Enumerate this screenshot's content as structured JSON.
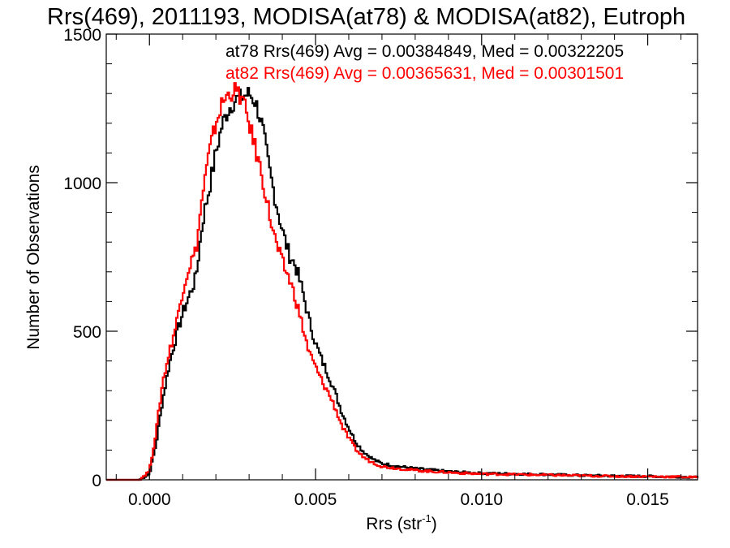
{
  "chart_data": {
    "type": "line",
    "title": "Rrs(469), 2011193, MODISA(at78) & MODISA(at82), Eutroph",
    "xlabel": "Rrs (str",
    "xlabel_sup": "-1",
    "xlabel_close": ")",
    "ylabel": "Number of Observations",
    "xlim": [
      -0.0013,
      0.0165
    ],
    "ylim": [
      0,
      1500
    ],
    "xticks": [
      0.0,
      0.005,
      0.01,
      0.015
    ],
    "xtick_labels": [
      "0.000",
      "0.005",
      "0.010",
      "0.015"
    ],
    "yticks": [
      0,
      500,
      1000,
      1500
    ],
    "ytick_labels": [
      "0",
      "500",
      "1000",
      "1500"
    ],
    "grid": false,
    "legend_position": "top-right",
    "annotations": [
      "at78 Rrs(469) Avg = 0.00384849, Med = 0.00322205",
      "at82 Rrs(469) Avg = 0.00365631, Med = 0.00301501"
    ],
    "series": [
      {
        "name": "at78",
        "color": "#000000",
        "x": [
          -0.0013,
          -0.0003,
          0.0,
          0.0002,
          0.0004,
          0.0006,
          0.0008,
          0.001,
          0.0012,
          0.0014,
          0.0016,
          0.0018,
          0.002,
          0.0022,
          0.0024,
          0.0026,
          0.0028,
          0.003,
          0.0032,
          0.0034,
          0.0036,
          0.0038,
          0.004,
          0.0042,
          0.0044,
          0.0046,
          0.0048,
          0.005,
          0.0052,
          0.0054,
          0.0056,
          0.0058,
          0.006,
          0.0062,
          0.0064,
          0.0066,
          0.0068,
          0.007,
          0.0075,
          0.008,
          0.0085,
          0.009,
          0.0095,
          0.01,
          0.011,
          0.012,
          0.013,
          0.014,
          0.015,
          0.016,
          0.0165
        ],
        "y": [
          0,
          0,
          20,
          120,
          270,
          390,
          480,
          560,
          620,
          680,
          870,
          980,
          1100,
          1200,
          1250,
          1280,
          1290,
          1300,
          1270,
          1190,
          1050,
          940,
          840,
          760,
          720,
          640,
          540,
          460,
          400,
          350,
          290,
          225,
          175,
          130,
          100,
          80,
          65,
          55,
          45,
          38,
          33,
          28,
          25,
          22,
          20,
          18,
          15,
          13,
          12,
          10,
          8
        ]
      },
      {
        "name": "at82",
        "color": "#ff0000",
        "x": [
          -0.0013,
          -0.0003,
          0.0,
          0.0002,
          0.0004,
          0.0006,
          0.0008,
          0.001,
          0.0012,
          0.0014,
          0.0016,
          0.0018,
          0.002,
          0.0022,
          0.0024,
          0.0026,
          0.0028,
          0.003,
          0.0032,
          0.0034,
          0.0036,
          0.0038,
          0.004,
          0.0042,
          0.0044,
          0.0046,
          0.0048,
          0.005,
          0.0052,
          0.0054,
          0.0056,
          0.0058,
          0.006,
          0.0062,
          0.0064,
          0.0066,
          0.0068,
          0.007,
          0.0075,
          0.008,
          0.0085,
          0.009,
          0.0095,
          0.01,
          0.011,
          0.012,
          0.013,
          0.014,
          0.015,
          0.016,
          0.0165
        ],
        "y": [
          0,
          0,
          30,
          160,
          330,
          430,
          520,
          640,
          720,
          770,
          960,
          1100,
          1200,
          1270,
          1300,
          1310,
          1280,
          1200,
          1110,
          1020,
          900,
          800,
          730,
          680,
          610,
          520,
          430,
          380,
          330,
          290,
          240,
          180,
          140,
          105,
          80,
          65,
          55,
          45,
          38,
          32,
          28,
          25,
          22,
          20,
          18,
          16,
          14,
          12,
          11,
          10,
          8
        ]
      }
    ]
  }
}
